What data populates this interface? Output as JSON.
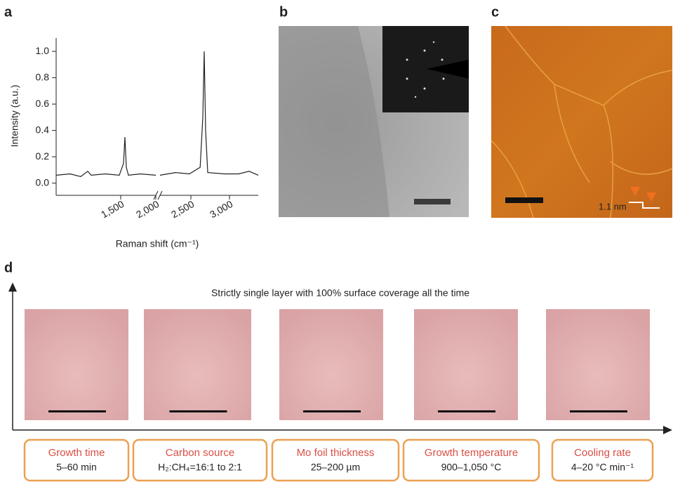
{
  "panel_labels": [
    "a",
    "b",
    "c",
    "d"
  ],
  "chart_data": {
    "type": "line",
    "xlabel": "Raman shift (cm⁻¹)",
    "ylabel": "Intensity (a.u.)",
    "color": "#222222",
    "ylim": [
      -0.05,
      1.07
    ],
    "yticks": [
      {
        "value": 0,
        "label": "0.0"
      },
      0.2,
      0.4,
      0.6,
      0.8,
      {
        "value": 1,
        "label": "1.0"
      }
    ],
    "x_segments": [
      {
        "xlim": [
          580,
          2000
        ],
        "xticks": [
          {
            "value": 1500,
            "label": "1,500"
          },
          {
            "value": 2000,
            "label": "2,000"
          }
        ]
      },
      {
        "xlim": [
          2100,
          3373
        ],
        "xticks": [
          {
            "value": 2500,
            "label": "2,500"
          },
          {
            "value": 3000,
            "label": "3,000"
          }
        ]
      }
    ],
    "series": [
      {
        "segment": 0,
        "x": [
          580,
          780,
          930,
          1030,
          1080,
          1280,
          1480,
          1540,
          1560,
          1580,
          1610,
          1780,
          2000
        ],
        "values": [
          0.06,
          0.07,
          0.05,
          0.09,
          0.06,
          0.07,
          0.06,
          0.15,
          0.35,
          0.12,
          0.06,
          0.07,
          0.06
        ]
      },
      {
        "segment": 1,
        "x": [
          2100,
          2300,
          2480,
          2620,
          2655,
          2673,
          2691,
          2718,
          2936,
          3118,
          3255,
          3373
        ],
        "values": [
          0.06,
          0.08,
          0.07,
          0.12,
          0.5,
          1.0,
          0.4,
          0.08,
          0.07,
          0.07,
          0.09,
          0.06
        ]
      }
    ]
  },
  "afm": {
    "height_label": "1.1 nm"
  },
  "conditions": {
    "title": "Strictly single layer with 100% surface coverage all the time",
    "items": [
      {
        "label": "Growth time",
        "value": "5–60 min"
      },
      {
        "label": "Carbon source",
        "value": "H₂:CH₄=16:1 to 2:1"
      },
      {
        "label": "Mo foil thickness",
        "value": "25–200 µm"
      },
      {
        "label": "Growth temperature",
        "value": "900–1,050 °C"
      },
      {
        "label": "Cooling rate",
        "value": "4–20 °C min⁻¹"
      }
    ]
  }
}
